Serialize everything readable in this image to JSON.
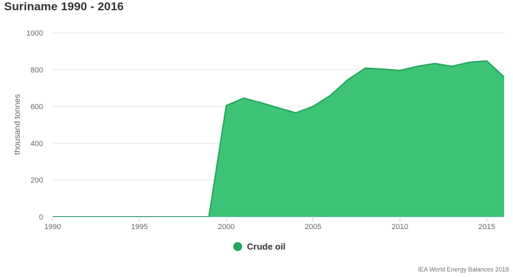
{
  "title": "Suriname 1990 - 2016",
  "source": "IEA World Energy Balances 2018",
  "colors": {
    "series": "#3ec477",
    "series_line": "#22a55b",
    "legend_dot": "#22a55b",
    "grid": "#e6e6e6",
    "axis": "#ccd6eb"
  },
  "chart_data": {
    "type": "area",
    "title": "Suriname 1990 - 2016",
    "ylabel": "thousand tonnes",
    "xlabel": "",
    "xlim": [
      1990,
      2016
    ],
    "ylim": [
      0,
      1000
    ],
    "x_ticks": [
      "1990",
      "1995",
      "2000",
      "2005",
      "2010",
      "2015"
    ],
    "y_ticks": [
      "0",
      "200",
      "400",
      "600",
      "800",
      "1000"
    ],
    "grid": true,
    "legend_position": "bottom-center",
    "x": [
      1990,
      1991,
      1992,
      1993,
      1994,
      1995,
      1996,
      1997,
      1998,
      1999,
      2000,
      2001,
      2002,
      2003,
      2004,
      2005,
      2006,
      2007,
      2008,
      2009,
      2010,
      2011,
      2012,
      2013,
      2014,
      2015,
      2016
    ],
    "series": [
      {
        "name": "Crude oil",
        "values": [
          0,
          0,
          0,
          0,
          0,
          0,
          0,
          0,
          0,
          0,
          605,
          645,
          620,
          592,
          565,
          600,
          660,
          745,
          808,
          803,
          795,
          818,
          833,
          818,
          840,
          847,
          760
        ]
      }
    ]
  }
}
